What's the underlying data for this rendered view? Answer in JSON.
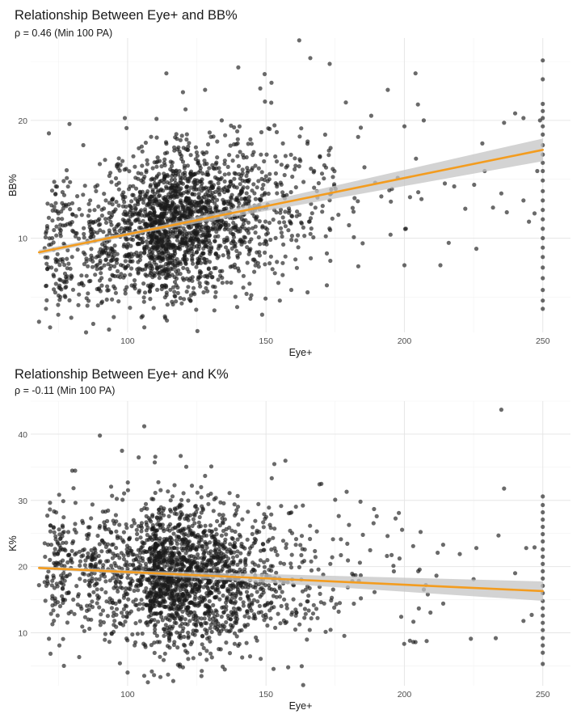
{
  "colors": {
    "point": "#1a1a1a",
    "line": "#f39c1f",
    "band": "#c4c4c4",
    "grid_major": "#e6e6e6",
    "grid_minor": "#f2f2f2"
  },
  "chart_data": [
    {
      "type": "scatter",
      "title": "Relationship Between Eye+ and BB%",
      "subtitle": "ρ = 0.46 (Min 100 PA)",
      "xlabel": "Eye+",
      "ylabel": "BB%",
      "xlim": [
        65,
        260
      ],
      "ylim": [
        2,
        27
      ],
      "xticks": [
        100,
        150,
        200,
        250
      ],
      "yticks": [
        10,
        20
      ],
      "grid": true,
      "trend_line": {
        "x": [
          68,
          250
        ],
        "y": [
          8.8,
          17.5
        ]
      },
      "point_cloud": {
        "n_points": 2200,
        "x_center": 108,
        "x_spread": 22,
        "y_intercept": 8.8,
        "y_slope_per_unit": 0.048,
        "y_noise": 3.1,
        "max_x": 250
      },
      "points": [
        [
          68,
          2.9
        ],
        [
          85,
          2.0
        ],
        [
          95,
          3.3
        ],
        [
          99,
          20.2
        ],
        [
          79,
          19.7
        ],
        [
          84,
          17.9
        ],
        [
          114,
          24.0
        ],
        [
          120,
          22.4
        ],
        [
          128,
          22.6
        ],
        [
          134,
          20.0
        ],
        [
          140,
          24.5
        ],
        [
          152,
          23.2
        ],
        [
          158,
          27.9
        ],
        [
          162,
          26.8
        ],
        [
          166,
          25.3
        ],
        [
          173,
          24.8
        ],
        [
          188,
          20.4
        ],
        [
          194,
          22.6
        ],
        [
          198,
          27.3
        ],
        [
          200,
          19.5
        ],
        [
          204,
          24.0
        ],
        [
          207,
          20.0
        ],
        [
          218,
          14.4
        ],
        [
          222,
          12.5
        ],
        [
          226,
          9.1
        ],
        [
          229,
          15.7
        ],
        [
          232,
          12.6
        ],
        [
          235,
          13.8
        ],
        [
          237,
          12.2
        ],
        [
          240,
          20.6
        ],
        [
          243,
          13.2
        ],
        [
          245,
          11.4
        ],
        [
          247,
          12.1
        ],
        [
          248,
          15.7
        ],
        [
          249,
          20.0
        ],
        [
          243,
          20.2
        ],
        [
          236,
          19.8
        ],
        [
          213,
          7.7
        ],
        [
          216,
          9.6
        ],
        [
          200,
          7.7
        ],
        [
          195,
          10.3
        ],
        [
          205,
          13.9
        ],
        [
          180,
          11.1
        ],
        [
          182,
          13.4
        ],
        [
          165,
          5.4
        ],
        [
          172,
          6.0
        ],
        [
          155,
          4.7
        ],
        [
          250,
          25.1
        ],
        [
          250,
          23.5
        ],
        [
          250,
          21.4
        ],
        [
          250,
          20.8
        ],
        [
          250,
          20.2
        ],
        [
          250,
          19.5
        ],
        [
          250,
          18.8
        ],
        [
          250,
          17.9
        ],
        [
          250,
          17.1
        ],
        [
          250,
          16.4
        ],
        [
          250,
          15.7
        ],
        [
          250,
          14.9
        ],
        [
          250,
          14.0
        ],
        [
          250,
          13.2
        ],
        [
          250,
          12.4
        ],
        [
          250,
          11.6
        ],
        [
          250,
          10.8
        ],
        [
          250,
          10.0
        ],
        [
          250,
          9.2
        ],
        [
          250,
          8.4
        ],
        [
          250,
          7.5
        ],
        [
          250,
          6.6
        ],
        [
          250,
          5.6
        ],
        [
          250,
          4.7
        ],
        [
          250,
          4.0
        ]
      ]
    },
    {
      "type": "scatter",
      "title": "Relationship Between Eye+ and K%",
      "subtitle": "ρ = -0.11 (Min 100 PA)",
      "xlabel": "Eye+",
      "ylabel": "K%",
      "xlim": [
        65,
        260
      ],
      "ylim": [
        2,
        45
      ],
      "xticks": [
        100,
        150,
        200,
        250
      ],
      "yticks": [
        10,
        20,
        30,
        40
      ],
      "grid": true,
      "trend_line": {
        "x": [
          68,
          250
        ],
        "y": [
          19.8,
          16.3
        ]
      },
      "point_cloud": {
        "n_points": 2200,
        "x_center": 108,
        "x_spread": 22,
        "y_intercept": 19.8,
        "y_slope_per_unit": -0.019,
        "y_noise": 5.4,
        "max_x": 250
      },
      "points": [
        [
          90,
          39.8
        ],
        [
          106,
          41.2
        ],
        [
          98,
          37.5
        ],
        [
          104,
          36.5
        ],
        [
          110,
          36.6
        ],
        [
          80,
          34.5
        ],
        [
          128,
          33.7
        ],
        [
          153,
          35.5
        ],
        [
          157,
          36.0
        ],
        [
          235,
          43.7
        ],
        [
          236,
          31.8
        ],
        [
          234,
          24.7
        ],
        [
          226,
          22.8
        ],
        [
          212,
          22.1
        ],
        [
          214,
          23.3
        ],
        [
          220,
          21.9
        ],
        [
          225,
          18.1
        ],
        [
          240,
          19.0
        ],
        [
          244,
          22.8
        ],
        [
          247,
          22.9
        ],
        [
          205,
          19.3
        ],
        [
          198,
          28.1
        ],
        [
          190,
          27.6
        ],
        [
          185,
          24.8
        ],
        [
          202,
          8.8
        ],
        [
          204,
          8.6
        ],
        [
          224,
          9.1
        ],
        [
          233,
          9.2
        ],
        [
          243,
          11.8
        ],
        [
          246,
          12.7
        ],
        [
          100,
          4.0
        ],
        [
          106,
          3.5
        ],
        [
          120,
          4.8
        ],
        [
          158,
          4.8
        ],
        [
          77,
          5.0
        ],
        [
          68,
          17.2
        ],
        [
          170,
          32.5
        ],
        [
          175,
          30.1
        ],
        [
          180,
          26.3
        ],
        [
          250,
          30.6
        ],
        [
          250,
          29.3
        ],
        [
          250,
          28.2
        ],
        [
          250,
          27.1
        ],
        [
          250,
          26.0
        ],
        [
          250,
          24.9
        ],
        [
          250,
          23.8
        ],
        [
          250,
          22.6
        ],
        [
          250,
          21.5
        ],
        [
          250,
          20.4
        ],
        [
          250,
          19.3
        ],
        [
          250,
          18.2
        ],
        [
          250,
          17.1
        ],
        [
          250,
          16.0
        ],
        [
          250,
          14.8
        ],
        [
          250,
          13.7
        ],
        [
          250,
          12.6
        ],
        [
          250,
          11.5
        ],
        [
          250,
          10.4
        ],
        [
          250,
          9.2
        ],
        [
          250,
          8.1
        ],
        [
          250,
          7.0
        ],
        [
          250,
          5.3
        ]
      ]
    }
  ]
}
